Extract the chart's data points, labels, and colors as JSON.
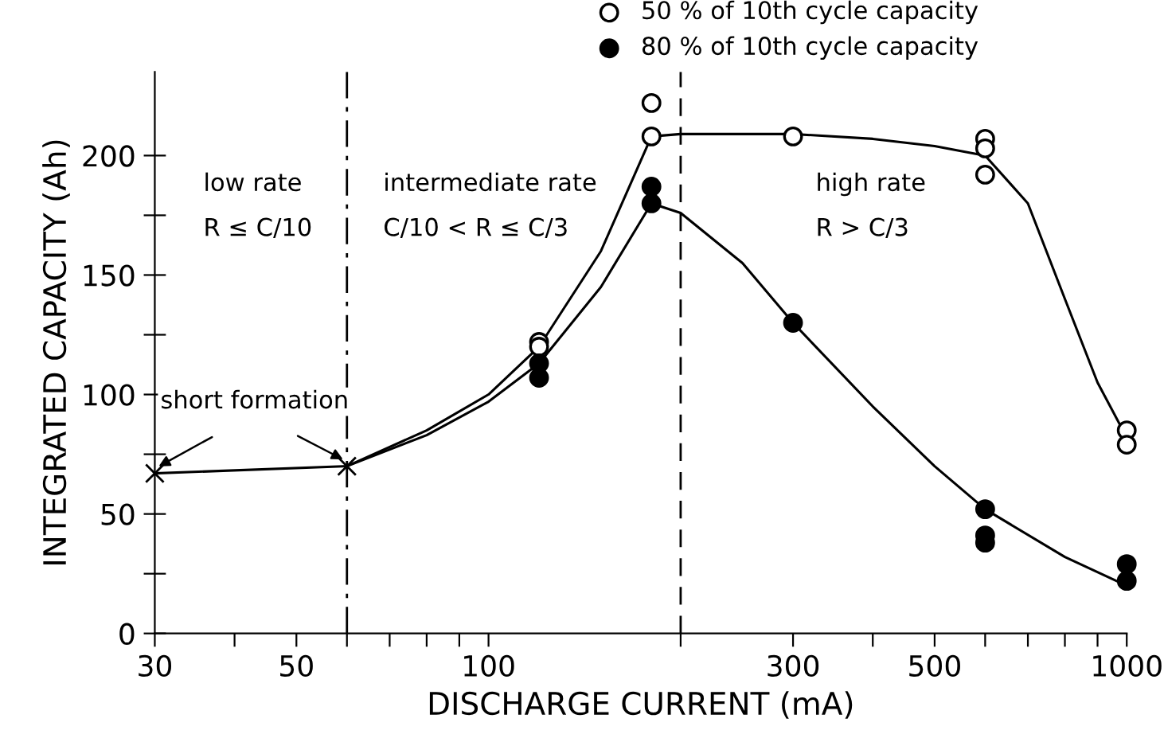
{
  "chart_data": {
    "type": "scatter",
    "xlabel": "DISCHARGE CURRENT (mA)",
    "ylabel": "INTEGRATED CAPACITY (Ah)",
    "log": "x",
    "xlim": [
      30,
      1000
    ],
    "ylim": [
      0,
      235
    ],
    "xticks": [
      30,
      {
        "value": 40,
        "label": null
      },
      50,
      {
        "value": 60,
        "label": null
      },
      {
        "value": 70,
        "label": null
      },
      {
        "value": 80,
        "label": null
      },
      {
        "value": 90,
        "label": null
      },
      100,
      {
        "value": 200,
        "label": null
      },
      300,
      {
        "value": 400,
        "label": null
      },
      500,
      {
        "value": 600,
        "label": null
      },
      {
        "value": 700,
        "label": null
      },
      {
        "value": 800,
        "label": null
      },
      {
        "value": 900,
        "label": null
      },
      1000
    ],
    "yticks": [
      0,
      {
        "value": 25,
        "label": null
      },
      50,
      {
        "value": 75,
        "label": null
      },
      100,
      {
        "value": 125,
        "label": null
      },
      150,
      {
        "value": 175,
        "label": null
      },
      200
    ],
    "grid": false,
    "legend": "top right",
    "series": [
      {
        "name": "50 % of 10th cycle capacity",
        "marker": "circle",
        "color": "#000000",
        "x": [
          120,
          120,
          180,
          180,
          300,
          600,
          600,
          600,
          1000,
          1000
        ],
        "values": [
          122,
          120,
          222,
          208,
          208,
          207,
          203,
          192,
          85,
          79
        ]
      },
      {
        "name": "80 % of 10th cycle capacity",
        "marker": "circle",
        "color": "#000000",
        "x": [
          120,
          120,
          180,
          180,
          300,
          600,
          600,
          600,
          1000,
          1000
        ],
        "values": [
          113,
          107,
          187,
          180,
          130,
          52,
          41,
          38,
          29,
          22
        ]
      },
      {
        "type": "line",
        "marker": "cross",
        "color": "#000000",
        "x": [
          30,
          60
        ],
        "values": [
          67,
          70
        ]
      },
      {
        "type": "line",
        "marker": "none",
        "color": "#000000",
        "x": [
          60,
          80,
          100,
          120,
          150,
          180,
          200,
          300,
          400,
          500,
          600,
          700,
          800,
          900,
          1000
        ],
        "values": [
          70,
          85,
          100,
          120,
          160,
          208,
          209,
          209,
          207,
          204,
          200,
          180,
          140,
          105,
          82
        ]
      },
      {
        "type": "line",
        "marker": "none",
        "color": "#000000",
        "x": [
          60,
          80,
          100,
          120,
          150,
          180,
          200,
          250,
          300,
          400,
          500,
          600,
          800,
          1000
        ],
        "values": [
          70,
          83,
          97,
          113,
          145,
          180,
          176,
          155,
          130,
          95,
          70,
          52,
          32,
          20
        ]
      }
    ],
    "ref_lines": [
      {
        "axis": "x",
        "value": 60,
        "line_style": "dashdot",
        "color": "#000000"
      },
      {
        "axis": "x",
        "value": 200,
        "line_style": "dashed",
        "color": "#000000"
      }
    ],
    "annotations": [
      "low rate",
      "R ≤ C/10",
      "intermediate rate",
      "C/10 < R ≤ C/3",
      "high rate",
      "R > C/3",
      {
        "text": "short formation",
        "x": 30,
        "y": 67
      }
    ]
  }
}
